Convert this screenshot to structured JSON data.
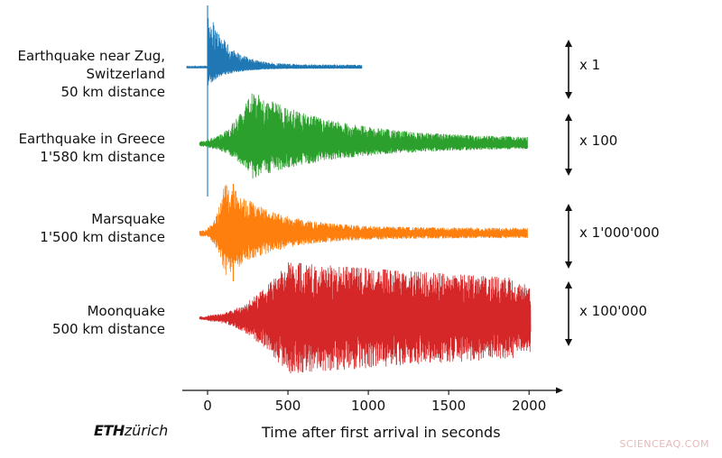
{
  "chart_data": {
    "type": "line",
    "xlabel": "Time after first arrival in seconds",
    "xticks": [
      0,
      500,
      1000,
      1500,
      2000
    ],
    "xlim": [
      -130,
      2080
    ],
    "series": [
      {
        "key": "zug",
        "label_lines": [
          "Earthquake near Zug,",
          "Switzerland",
          "50 km distance"
        ],
        "scale_label": "x 1",
        "color": "#1f77b4",
        "x_start": -130,
        "x_end": 960,
        "max_pos": 68,
        "max_neg": 20,
        "peak_at": 0,
        "noise": 3,
        "decay": 120
      },
      {
        "key": "greece",
        "label_lines": [
          "Earthquake in Greece",
          "1'580 km distance"
        ],
        "scale_label": "x 100",
        "color": "#2ca02c",
        "x_start": -50,
        "x_end": 1990,
        "max_pos": 58,
        "max_neg": 38,
        "peak_at": 280,
        "noise": 6,
        "decay": 520
      },
      {
        "key": "mars",
        "label_lines": [
          "Marsquake",
          "1'500 km distance"
        ],
        "scale_label": "x 1'000'000",
        "color": "#ff7f0e",
        "x_start": -50,
        "x_end": 1990,
        "max_pos": 58,
        "max_neg": 48,
        "peak_at": 110,
        "noise": 6,
        "decay": 280
      },
      {
        "key": "moon",
        "label_lines": [
          "Moonquake",
          "500 km distance"
        ],
        "scale_label": "x 100'000",
        "color": "#d62728",
        "x_start": -50,
        "x_end": 2010,
        "max_pos": 62,
        "max_neg": 62,
        "peak_at": 500,
        "noise": 3,
        "decay": 4000
      }
    ]
  },
  "branding": {
    "logo_bold": "ETH",
    "logo_light": "zürich"
  },
  "watermark": "SCIENCEAQ.COM"
}
